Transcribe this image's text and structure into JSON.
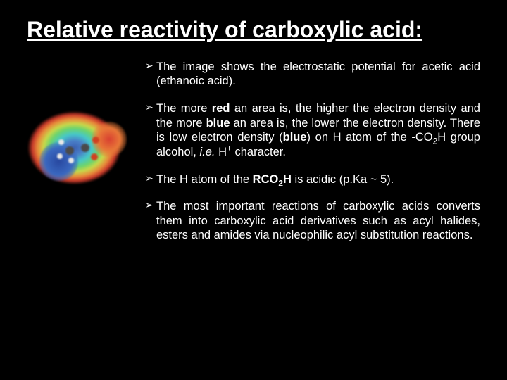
{
  "title": "Relative reactivity of carboxylic acid:",
  "bullets": {
    "b1_pre": "The image shows the electrostatic potential for acetic acid (ethanoic acid).",
    "b2_a": "The more ",
    "b2_red": "red",
    "b2_b": " an area is, the higher the electron density and the more ",
    "b2_blue": "blue",
    "b2_c": " an area is, the lower the electron density.  There is low electron density (",
    "b2_blue2": "blue",
    "b2_d": ") on H atom of the -CO",
    "b2_sub": "2",
    "b2_e": "H group alcohol, ",
    "b2_ie": "i.e.",
    "b2_f": " H",
    "b2_sup": "+",
    "b2_g": " character.",
    "b3_a": "The H atom of the ",
    "b3_rco": "RCO",
    "b3_sub": "2",
    "b3_h": "H",
    "b3_b": " is acidic (p.Ka ~ 5).",
    "b4": "The most important reactions of carboxylic acids converts them into carboxylic acid derivatives such as acyl halides, esters and amides via nucleophilic acyl substitution reactions."
  },
  "colors": {
    "background": "#000000",
    "text": "#ffffff"
  }
}
